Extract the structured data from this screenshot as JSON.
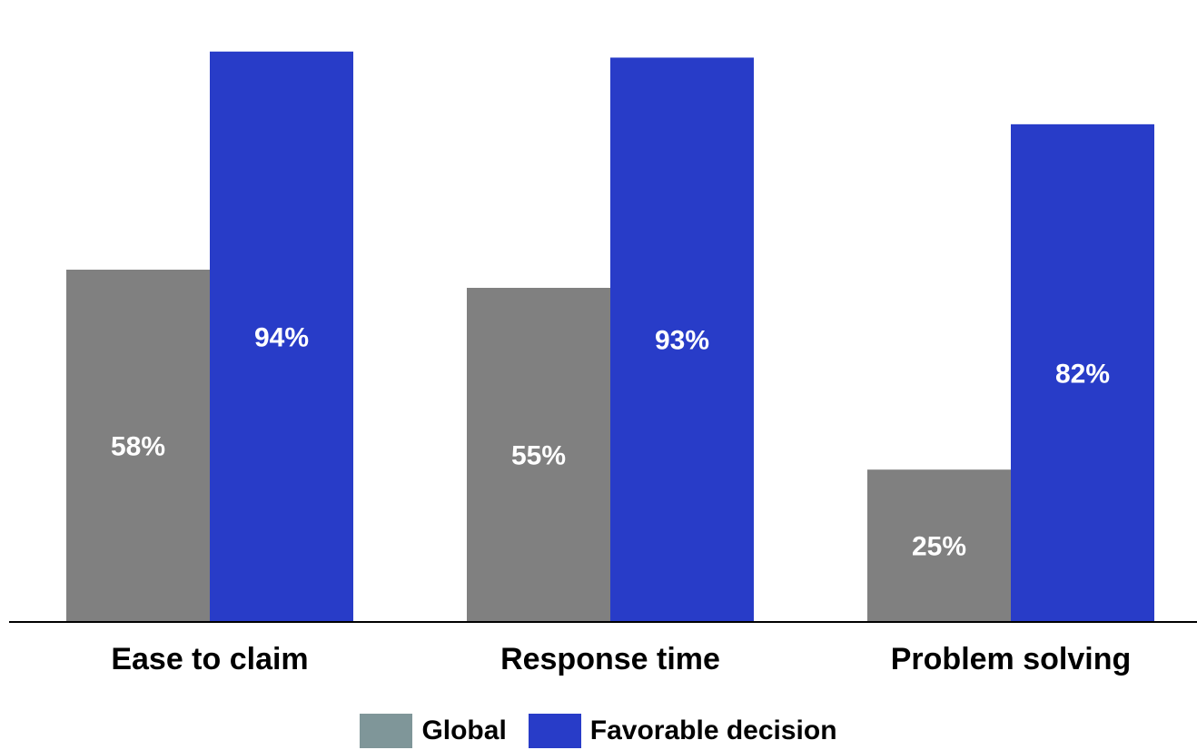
{
  "chart_data": {
    "type": "bar",
    "categories": [
      "Ease to claim",
      "Response time",
      "Problem solving"
    ],
    "series": [
      {
        "name": "Global",
        "values": [
          58,
          55,
          25
        ],
        "labels": [
          "58%",
          "55%",
          "25%"
        ],
        "color": "#808080",
        "legend_color": "#7f9699"
      },
      {
        "name": "Favorable decision",
        "values": [
          94,
          93,
          82
        ],
        "labels": [
          "94%",
          "93%",
          "82%"
        ],
        "color": "#283cc8",
        "legend_color": "#283cc8"
      }
    ],
    "ylim": [
      0,
      100
    ],
    "grid": false,
    "legend_position": "bottom",
    "label_color": "#ffffff",
    "axis_color": "#000000"
  }
}
